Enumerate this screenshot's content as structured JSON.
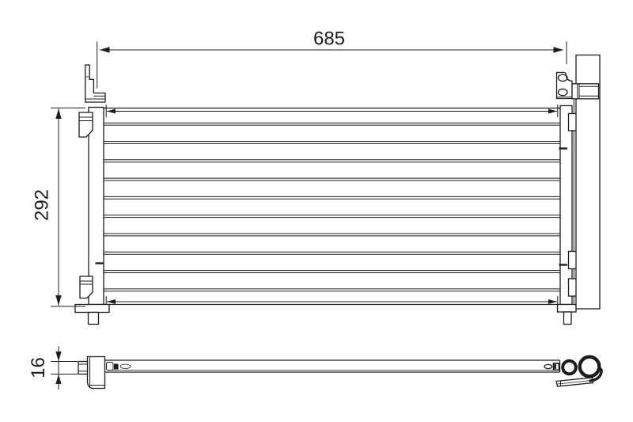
{
  "drawing": {
    "labels": {
      "width": "685",
      "height": "292",
      "depth": "16"
    },
    "line_color": "#1c1c1c",
    "background_color": "#ffffff",
    "core": {
      "tube_count": 10
    }
  }
}
